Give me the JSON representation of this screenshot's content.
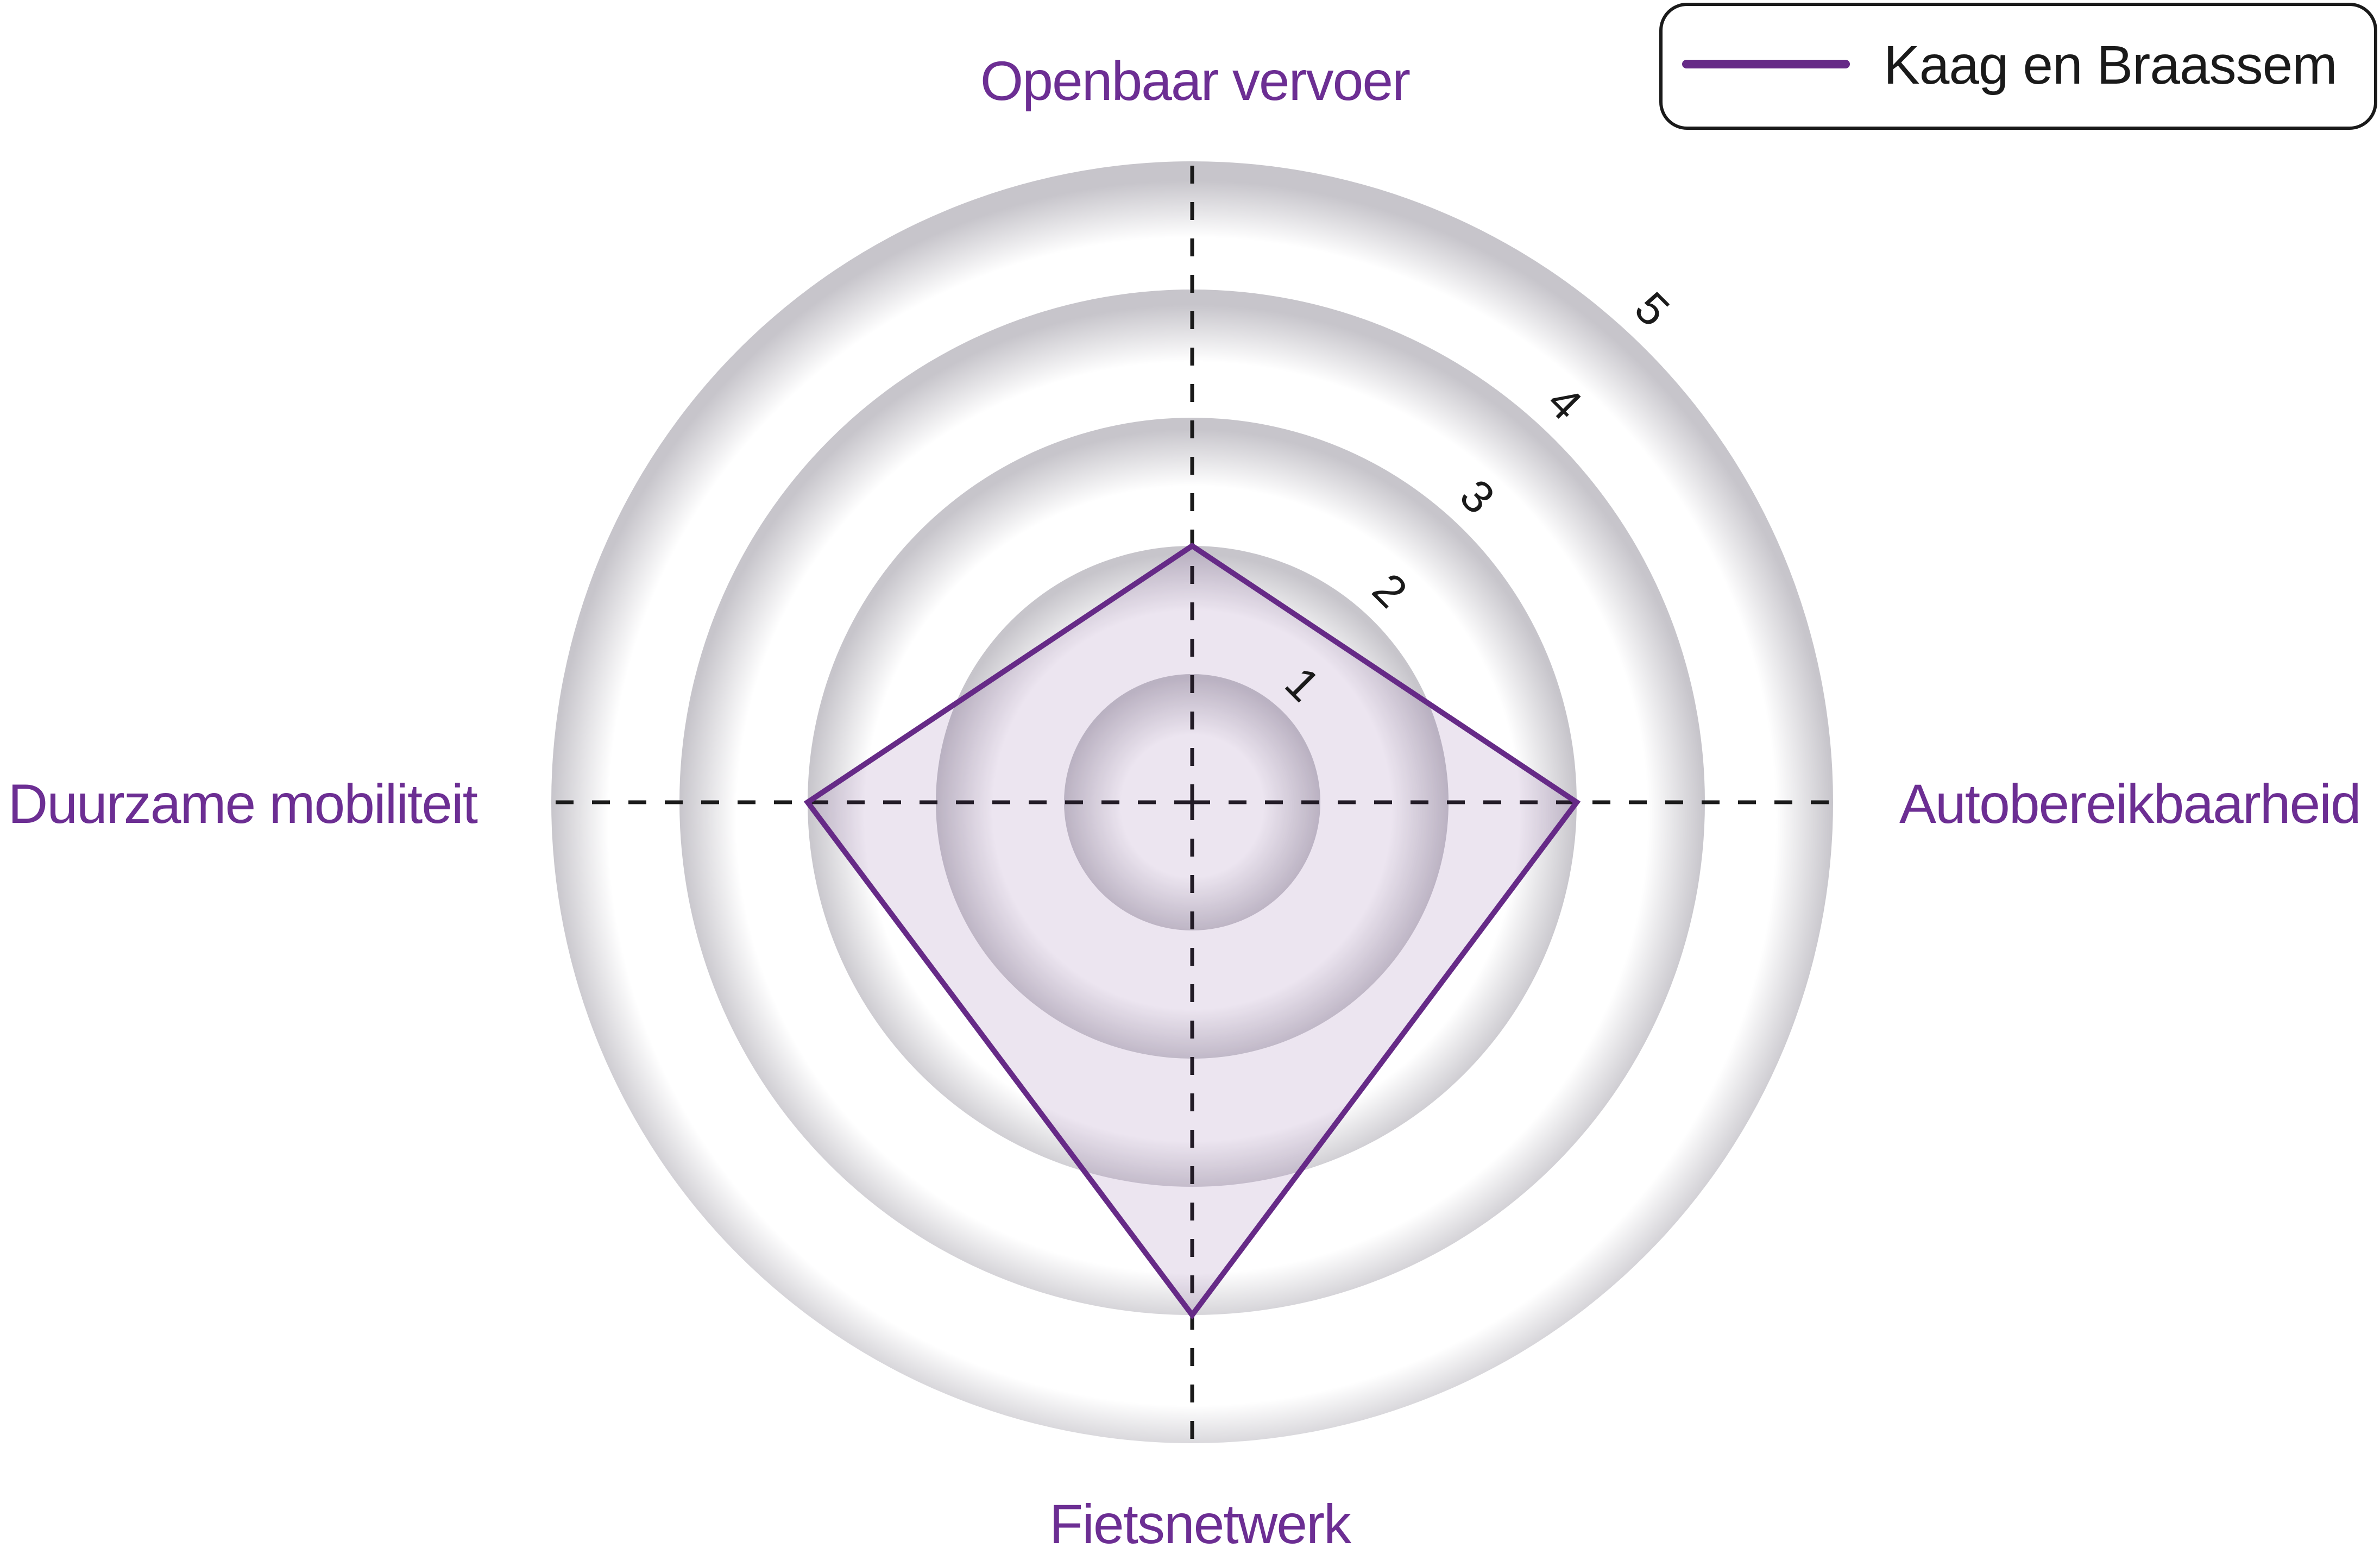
{
  "legend": {
    "label": "Kaag en Braassem",
    "position": "top-right",
    "swatch_color": "#662a87"
  },
  "chart_data": {
    "type": "radar",
    "axes": [
      {
        "key": "top",
        "label": "Openbaar vervoer",
        "value": 2
      },
      {
        "key": "right",
        "label": "Autobereikbaarheid",
        "value": 3
      },
      {
        "key": "bottom",
        "label": "Fietsnetwerk",
        "value": 4
      },
      {
        "key": "left",
        "label": "Duurzame mobiliteit",
        "value": 3
      }
    ],
    "series": [
      {
        "name": "Kaag en Braassem",
        "values": [
          2,
          3,
          4,
          3
        ],
        "line_color": "#662a87",
        "fill_color": "rgba(102, 42, 135, 0.12)"
      }
    ],
    "scale": {
      "min": 0,
      "max": 5,
      "ticks": [
        "1",
        "2",
        "3",
        "4",
        "5"
      ]
    },
    "grid": {
      "shape": "concentric-circles",
      "levels": 5,
      "axis_line_style": "dashed"
    },
    "legend_position": "top-right"
  },
  "colors": {
    "background": "#ffffff",
    "axis_label": "#6c2e93",
    "tick_label": "#1a1a1a",
    "axis_line": "#1a1a1a",
    "ring_edge_shade": "#c7c5cb",
    "ring_fill": "#ffffff",
    "series_line": "#662a87",
    "legend_border": "#1a1a1a"
  }
}
